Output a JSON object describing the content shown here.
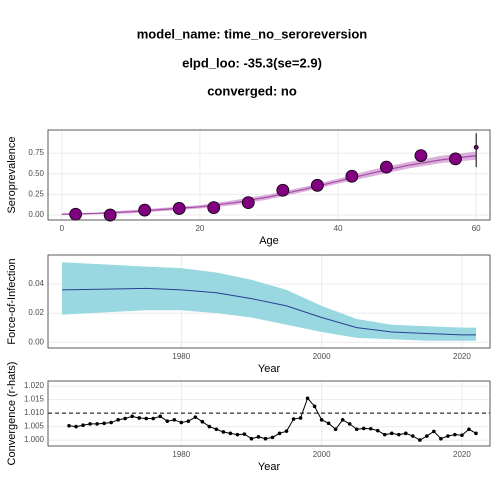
{
  "header": {
    "lines": [
      "model_name: time_no_seroreversion",
      "elpd_loo: -35.3(se=2.9)",
      "converged: no"
    ]
  },
  "chart_data": [
    {
      "type": "scatter",
      "xlabel": "Age",
      "ylabel": "Seroprevalence",
      "x": [
        2,
        7,
        12,
        17,
        22,
        27,
        32,
        37,
        42,
        47,
        52,
        57,
        60
      ],
      "values": [
        0.01,
        0.0,
        0.06,
        0.08,
        0.09,
        0.15,
        0.3,
        0.36,
        0.47,
        0.58,
        0.72,
        0.68,
        0.82
      ],
      "lower": [
        0.0,
        0.0,
        0.04,
        0.06,
        0.07,
        0.12,
        0.26,
        0.31,
        0.42,
        0.52,
        0.66,
        0.61,
        0.58
      ],
      "upper": [
        0.03,
        0.02,
        0.08,
        0.11,
        0.12,
        0.19,
        0.35,
        0.42,
        0.53,
        0.63,
        0.76,
        0.7,
        0.99
      ],
      "color": "#800080",
      "fit": {
        "x": [
          0,
          5,
          10,
          15,
          20,
          25,
          30,
          35,
          40,
          45,
          50,
          55,
          60
        ],
        "values": [
          0.01,
          0.02,
          0.04,
          0.07,
          0.1,
          0.15,
          0.22,
          0.31,
          0.41,
          0.51,
          0.6,
          0.67,
          0.72
        ],
        "lower": [
          0.0,
          0.01,
          0.02,
          0.05,
          0.08,
          0.12,
          0.19,
          0.28,
          0.38,
          0.47,
          0.56,
          0.63,
          0.67
        ],
        "upper": [
          0.02,
          0.03,
          0.06,
          0.09,
          0.12,
          0.18,
          0.25,
          0.34,
          0.44,
          0.55,
          0.64,
          0.72,
          0.77
        ],
        "color": "#a64ca6",
        "band_color": "#dcb0dc"
      },
      "xlim": [
        -2,
        62
      ],
      "ylim": [
        -0.06,
        1.03
      ],
      "xticks": [
        0,
        20,
        40,
        60
      ],
      "yticks": [
        {
          "value": 0,
          "label": "0.00"
        },
        0.25,
        {
          "value": 0.5,
          "label": "0.50"
        },
        0.75
      ],
      "grid": true
    },
    {
      "type": "line",
      "xlabel": "Year",
      "ylabel": "Force-of-Infection",
      "x": [
        1963,
        1975,
        1980,
        1985,
        1990,
        1995,
        2000,
        2005,
        2010,
        2015,
        2020,
        2022
      ],
      "values": [
        0.036,
        0.037,
        0.036,
        0.034,
        0.03,
        0.025,
        0.017,
        0.01,
        0.007,
        0.006,
        0.005,
        0.005
      ],
      "lower": [
        0.019,
        0.022,
        0.022,
        0.02,
        0.017,
        0.012,
        0.007,
        0.003,
        0.002,
        0.001,
        0.001,
        0.001
      ],
      "upper": [
        0.055,
        0.052,
        0.051,
        0.048,
        0.043,
        0.036,
        0.025,
        0.016,
        0.012,
        0.011,
        0.01,
        0.01
      ],
      "color": "#2c3e91",
      "band_color": "#99d8e0",
      "xlim": [
        1961,
        2024
      ],
      "ylim": [
        -0.004,
        0.06
      ],
      "xticks": [
        1980,
        2000,
        2020
      ],
      "yticks": [
        {
          "value": 0,
          "label": "0.00"
        },
        0.02,
        0.04
      ],
      "grid": true
    },
    {
      "type": "line",
      "xlabel": "Year",
      "ylabel": "Convergence (r-hats)",
      "markers": true,
      "x": [
        1964,
        1965,
        1966,
        1967,
        1968,
        1969,
        1970,
        1971,
        1972,
        1973,
        1974,
        1975,
        1976,
        1977,
        1978,
        1979,
        1980,
        1981,
        1982,
        1983,
        1984,
        1985,
        1986,
        1987,
        1988,
        1989,
        1990,
        1991,
        1992,
        1993,
        1994,
        1995,
        1996,
        1997,
        1998,
        1999,
        2000,
        2001,
        2002,
        2003,
        2004,
        2005,
        2006,
        2007,
        2008,
        2009,
        2010,
        2011,
        2012,
        2013,
        2014,
        2015,
        2016,
        2017,
        2018,
        2019,
        2020,
        2021,
        2022
      ],
      "values": [
        1.0053,
        1.005,
        1.0055,
        1.006,
        1.006,
        1.0062,
        1.0065,
        1.0075,
        1.008,
        1.0088,
        1.0082,
        1.008,
        1.008,
        1.0088,
        1.007,
        1.0075,
        1.0065,
        1.007,
        1.0085,
        1.0068,
        1.005,
        1.004,
        1.003,
        1.0025,
        1.002,
        1.0022,
        1.0005,
        1.0012,
        1.0005,
        1.001,
        1.0025,
        1.0033,
        1.0078,
        1.0082,
        1.0155,
        1.0125,
        1.0075,
        1.0062,
        1.004,
        1.0075,
        1.006,
        1.004,
        1.0043,
        1.0042,
        1.0035,
        1.002,
        1.0025,
        1.002,
        1.0025,
        1.0015,
        1.0,
        1.0015,
        1.0032,
        1.0005,
        1.0015,
        1.002,
        1.0018,
        1.004,
        1.0025
      ],
      "color": "#000000",
      "reference_line": 1.01,
      "xlim": [
        1961,
        2024
      ],
      "ylim": [
        0.9978,
        1.0219
      ],
      "xticks": [
        1980,
        2000,
        2020
      ],
      "yticks": [
        {
          "value": 1.0,
          "label": "1.000"
        },
        1.005,
        {
          "value": 1.01,
          "label": "1.010"
        },
        1.015,
        {
          "value": 1.02,
          "label": "1.020"
        }
      ],
      "grid": true
    }
  ]
}
